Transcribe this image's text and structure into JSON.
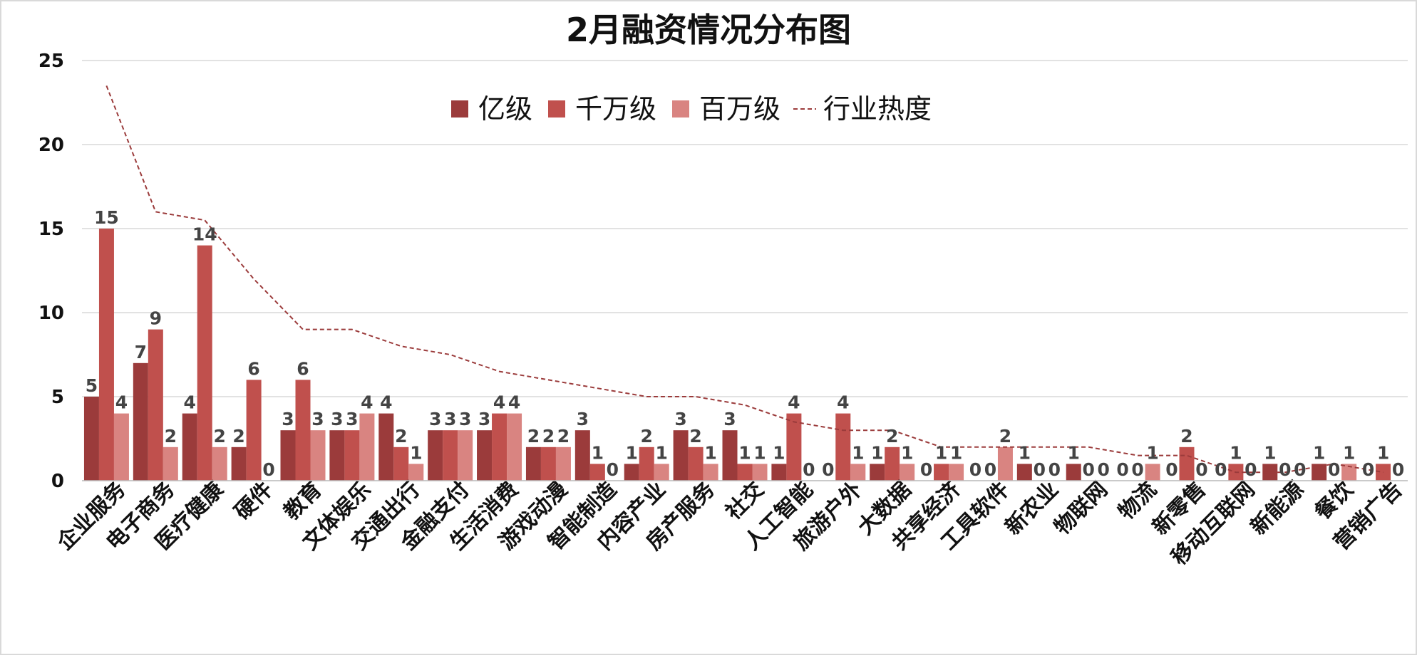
{
  "chart_data": {
    "type": "bar",
    "title": "2月融资情况分布图",
    "xlabel": "",
    "ylabel": "",
    "ylim": [
      0,
      25
    ],
    "yticks": [
      0,
      5,
      10,
      15,
      20,
      25
    ],
    "grid": "horizontal",
    "legend_position": "top-center",
    "categories": [
      "企业服务",
      "电子商务",
      "医疗健康",
      "硬件",
      "教育",
      "文体娱乐",
      "交通出行",
      "金融支付",
      "生活消费",
      "游戏动漫",
      "智能制造",
      "内容产业",
      "房产服务",
      "社交",
      "人工智能",
      "旅游户外",
      "大数据",
      "共享经济",
      "工具软件",
      "新农业",
      "物联网",
      "物流",
      "新零售",
      "移动互联网",
      "新能源",
      "餐饮",
      "营销广告"
    ],
    "series": [
      {
        "name": "亿级",
        "type": "bar",
        "color": "#9b3b3b",
        "values": [
          5,
          7,
          4,
          2,
          3,
          3,
          4,
          3,
          3,
          2,
          3,
          1,
          3,
          3,
          1,
          0,
          1,
          0,
          0,
          1,
          1,
          0,
          0,
          0,
          1,
          1,
          0
        ]
      },
      {
        "name": "千万级",
        "type": "bar",
        "color": "#c0504d",
        "values": [
          15,
          9,
          14,
          6,
          6,
          3,
          2,
          3,
          4,
          2,
          1,
          2,
          2,
          1,
          4,
          4,
          2,
          1,
          0,
          0,
          0,
          0,
          2,
          1,
          0,
          0,
          1
        ]
      },
      {
        "name": "百万级",
        "type": "bar",
        "color": "#d98481",
        "values": [
          4,
          2,
          2,
          0,
          3,
          4,
          1,
          3,
          4,
          2,
          0,
          1,
          1,
          1,
          0,
          1,
          1,
          1,
          2,
          0,
          0,
          1,
          0,
          0,
          0,
          1,
          0
        ]
      },
      {
        "name": "行业热度",
        "type": "line",
        "style": "dashed",
        "color": "#9b3b3b",
        "values": [
          23.5,
          16,
          15.5,
          12,
          9,
          9,
          8,
          7.5,
          6.5,
          6,
          5.5,
          5,
          5,
          4.5,
          3.5,
          3,
          3,
          2,
          2,
          2,
          2,
          1.5,
          1.5,
          0.5,
          0.5,
          1,
          0.5
        ]
      }
    ]
  }
}
